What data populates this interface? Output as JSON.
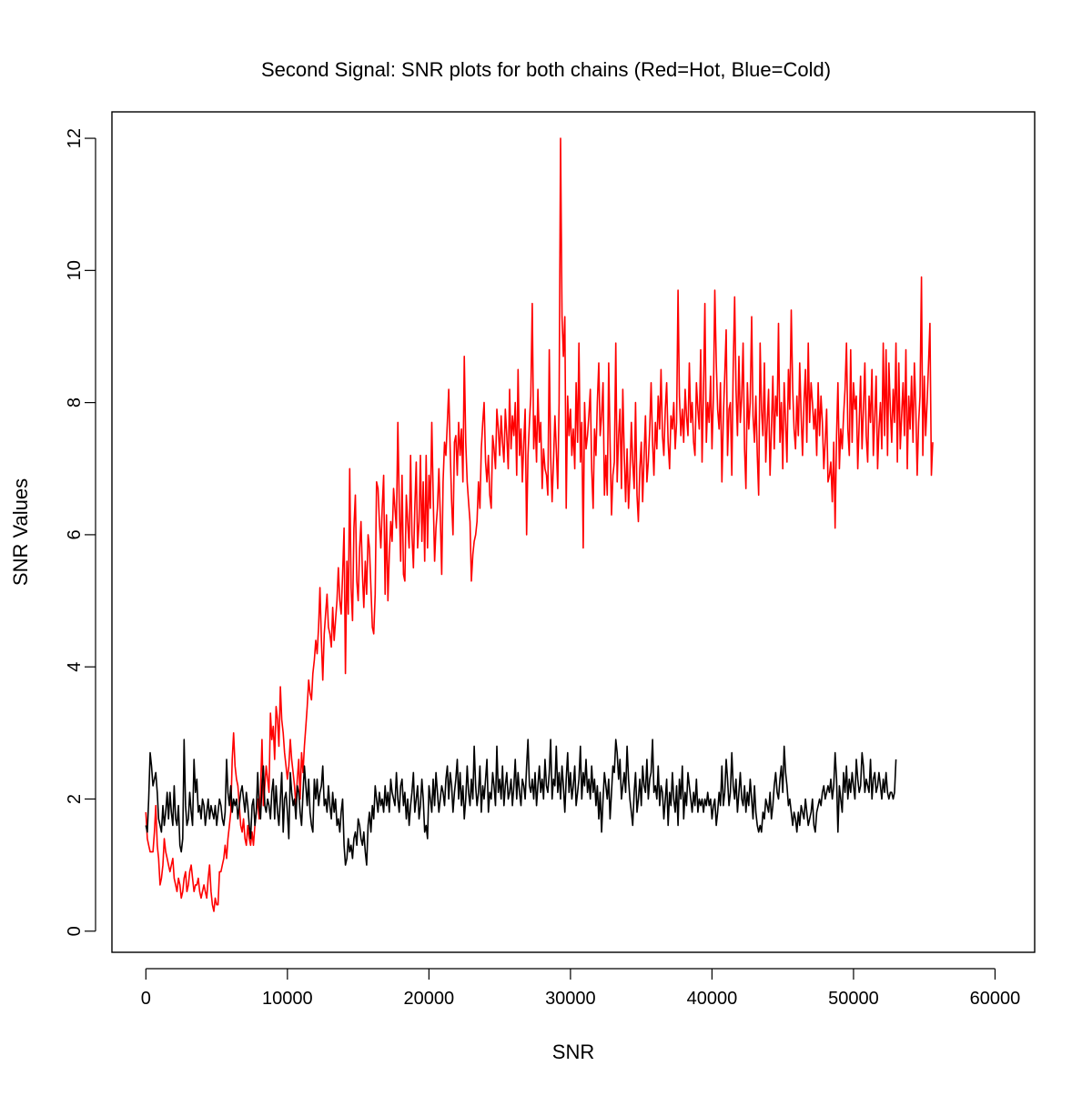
{
  "chart_data": {
    "type": "line",
    "title": "Second Signal: SNR plots for both chains (Red=Hot, Blue=Cold)",
    "xlabel": "SNR",
    "ylabel": "SNR Values",
    "xlim": [
      -2400,
      62800
    ],
    "ylim": [
      -0.32,
      12.4
    ],
    "x_ticks": [
      0,
      10000,
      20000,
      30000,
      40000,
      50000,
      60000
    ],
    "x_tick_labels": [
      "0",
      "10000",
      "20000",
      "30000",
      "40000",
      "50000",
      "60000"
    ],
    "y_ticks": [
      0,
      2,
      4,
      6,
      8,
      10,
      12
    ],
    "y_tick_labels": [
      "0",
      "2",
      "4",
      "6",
      "8",
      "10",
      "12"
    ],
    "grid": false,
    "legend": "none",
    "x_start": 0,
    "x_step": 100,
    "series": [
      {
        "color": "#ff0000",
        "values": [
          1.8,
          1.4,
          1.3,
          1.2,
          1.2,
          1.2,
          1.5,
          1.9,
          1.3,
          1.1,
          0.7,
          0.8,
          1.0,
          1.4,
          1.2,
          1.1,
          1.0,
          0.9,
          1.0,
          1.1,
          0.8,
          0.7,
          0.6,
          0.8,
          0.7,
          0.5,
          0.6,
          0.8,
          0.9,
          0.6,
          0.7,
          0.9,
          1.0,
          0.8,
          0.6,
          0.7,
          0.7,
          0.8,
          0.6,
          0.5,
          0.6,
          0.7,
          0.6,
          0.5,
          0.8,
          1.0,
          0.6,
          0.4,
          0.3,
          0.5,
          0.4,
          0.4,
          0.9,
          0.9,
          1.0,
          1.1,
          1.3,
          1.1,
          1.4,
          1.6,
          1.8,
          2.6,
          3.0,
          2.5,
          2.3,
          2.2,
          1.9,
          1.6,
          1.5,
          1.7,
          1.4,
          1.3,
          1.6,
          1.4,
          1.3,
          1.5,
          1.3,
          1.6,
          1.8,
          2.0,
          1.7,
          2.1,
          2.9,
          1.9,
          2.2,
          2.5,
          2.3,
          2.1,
          3.3,
          2.9,
          3.1,
          2.6,
          3.4,
          3.2,
          2.8,
          3.7,
          3.2,
          3.0,
          2.7,
          2.5,
          2.3,
          2.5,
          2.9,
          2.6,
          2.4,
          2.2,
          1.9,
          2.3,
          2.6,
          2.0,
          2.7,
          2.4,
          2.8,
          3.1,
          3.4,
          3.8,
          3.6,
          3.5,
          3.9,
          4.1,
          4.4,
          4.2,
          4.6,
          5.2,
          4.4,
          3.8,
          4.5,
          4.8,
          5.1,
          4.6,
          4.5,
          4.3,
          4.9,
          4.4,
          4.7,
          5.0,
          5.5,
          5.0,
          4.8,
          5.4,
          6.1,
          3.9,
          5.6,
          4.8,
          7.0,
          5.2,
          4.7,
          6.1,
          6.6,
          5.3,
          5.0,
          5.8,
          6.2,
          5.4,
          4.9,
          5.6,
          5.1,
          6.0,
          5.8,
          5.2,
          4.6,
          4.5,
          5.1,
          6.8,
          6.7,
          6.2,
          5.8,
          6.4,
          6.9,
          5.1,
          6.3,
          5.0,
          5.7,
          6.2,
          5.9,
          6.7,
          6.4,
          6.1,
          7.7,
          6.5,
          5.6,
          6.9,
          5.4,
          5.3,
          6.6,
          6.2,
          5.8,
          7.2,
          6.0,
          5.5,
          6.4,
          7.1,
          5.8,
          6.2,
          7.2,
          5.9,
          6.8,
          5.6,
          7.2,
          5.8,
          6.9,
          6.4,
          7.7,
          6.6,
          5.6,
          6.1,
          6.4,
          7.0,
          6.3,
          5.4,
          6.8,
          7.4,
          7.2,
          7.7,
          8.2,
          7.3,
          6.5,
          6.0,
          7.4,
          7.5,
          6.9,
          7.7,
          7.2,
          7.6,
          6.8,
          8.7,
          7.4,
          6.8,
          6.5,
          6.2,
          5.3,
          5.7,
          5.9,
          6.0,
          6.2,
          6.8,
          6.4,
          7.3,
          7.7,
          8.0,
          7.1,
          6.8,
          7.2,
          6.6,
          6.4,
          7.5,
          7.3,
          7.0,
          7.9,
          7.6,
          7.2,
          7.8,
          7.4,
          7.1,
          7.9,
          7.5,
          7.0,
          8.2,
          7.3,
          7.8,
          7.5,
          8.0,
          6.9,
          8.5,
          7.2,
          7.6,
          6.8,
          7.4,
          7.9,
          6.0,
          7.2,
          7.7,
          8.1,
          9.5,
          7.3,
          7.8,
          7.1,
          8.2,
          7.4,
          7.7,
          6.7,
          7.3,
          7.0,
          6.9,
          6.6,
          8.8,
          7.2,
          6.5,
          7.1,
          7.8,
          7.3,
          6.7,
          8.0,
          12.0,
          9.3,
          8.7,
          9.3,
          6.4,
          8.1,
          7.5,
          7.9,
          7.2,
          7.6,
          7.0,
          8.3,
          7.4,
          8.9,
          7.1,
          7.7,
          5.8,
          8.0,
          7.3,
          7.5,
          7.8,
          8.2,
          7.0,
          6.4,
          7.6,
          7.2,
          8.0,
          8.6,
          7.5,
          7.8,
          8.3,
          6.6,
          7.2,
          6.6,
          8.6,
          7.4,
          6.3,
          6.9,
          7.1,
          8.9,
          6.8,
          7.5,
          7.9,
          6.7,
          8.2,
          7.2,
          6.5,
          7.3,
          6.4,
          6.9,
          7.7,
          7.1,
          6.7,
          8.0,
          6.6,
          6.2,
          7.0,
          7.4,
          6.5,
          7.2,
          7.8,
          6.8,
          7.1,
          7.6,
          8.3,
          7.4,
          6.9,
          7.7,
          7.3,
          8.1,
          7.6,
          8.5,
          7.5,
          7.2,
          7.9,
          8.3,
          7.4,
          7.0,
          7.8,
          7.6,
          8.0,
          7.3,
          7.7,
          9.7,
          8.1,
          7.5,
          7.9,
          7.4,
          8.2,
          7.8,
          7.5,
          8.6,
          7.7,
          8.0,
          7.4,
          7.2,
          8.3,
          7.9,
          7.6,
          8.8,
          7.1,
          8.2,
          9.5,
          7.4,
          8.0,
          7.7,
          8.4,
          7.3,
          8.1,
          9.7,
          8.6,
          7.9,
          7.6,
          8.3,
          6.8,
          7.8,
          8.4,
          9.1,
          7.2,
          7.9,
          8.0,
          6.9,
          8.5,
          9.6,
          8.2,
          7.5,
          8.7,
          7.7,
          8.1,
          8.9,
          7.3,
          6.7,
          8.3,
          7.6,
          8.0,
          9.3,
          7.8,
          7.4,
          8.1,
          7.2,
          6.6,
          8.9,
          7.9,
          7.5,
          8.6,
          7.1,
          7.7,
          8.2,
          6.9,
          7.6,
          8.4,
          7.3,
          8.1,
          7.8,
          9.2,
          7.4,
          8.0,
          7.0,
          8.3,
          7.7,
          7.1,
          8.5,
          7.9,
          9.4,
          8.2,
          7.6,
          7.3,
          8.1,
          7.5,
          8.6,
          7.8,
          7.2,
          8.0,
          8.5,
          7.4,
          8.9,
          7.7,
          8.3,
          8.0,
          7.6,
          7.9,
          7.2,
          8.3,
          7.5,
          8.1,
          7.7,
          7.0,
          7.4,
          7.9,
          6.8,
          6.9,
          7.1,
          6.5,
          7.4,
          6.1,
          7.5,
          8.3,
          7.0,
          7.6,
          7.3,
          7.8,
          8.2,
          8.9,
          7.6,
          7.2,
          8.8,
          7.4,
          8.3,
          7.9,
          8.1,
          7.0,
          7.7,
          8.4,
          7.3,
          7.9,
          8.6,
          7.5,
          7.1,
          8.1,
          7.7,
          8.5,
          7.2,
          7.8,
          8.4,
          7.0,
          7.6,
          8.0,
          7.3,
          8.9,
          7.5,
          8.8,
          7.2,
          8.6,
          7.9,
          7.4,
          8.2,
          7.7,
          8.9,
          7.1,
          8.6,
          7.3,
          7.8,
          8.3,
          7.5,
          8.8,
          7.0,
          8.1,
          7.6,
          8.4,
          7.4,
          8.6,
          7.9,
          6.9,
          7.7,
          8.1,
          9.9,
          7.2,
          8.4,
          7.5,
          8.0,
          8.6,
          9.2,
          6.9,
          7.4
        ]
      },
      {
        "color": "#000000",
        "values": [
          1.6,
          1.5,
          2.0,
          2.7,
          2.5,
          2.2,
          2.3,
          2.4,
          2.1,
          1.7,
          1.6,
          1.5,
          1.9,
          1.6,
          1.8,
          2.1,
          1.7,
          2.1,
          1.8,
          1.6,
          2.2,
          1.7,
          1.6,
          1.9,
          1.3,
          1.2,
          1.4,
          2.9,
          1.9,
          1.6,
          1.7,
          2.1,
          1.8,
          1.6,
          2.6,
          2.1,
          2.3,
          1.8,
          1.9,
          1.7,
          2.0,
          1.9,
          1.6,
          1.8,
          2.0,
          1.7,
          1.9,
          1.8,
          1.7,
          1.9,
          1.6,
          1.8,
          2.0,
          1.9,
          1.7,
          1.6,
          1.8,
          2.6,
          2.1,
          1.9,
          2.2,
          1.8,
          2.0,
          1.9,
          2.0,
          1.7,
          1.9,
          2.1,
          2.2,
          2.0,
          1.8,
          2.1,
          1.9,
          1.6,
          1.4,
          1.9,
          2.0,
          1.6,
          1.8,
          2.4,
          1.9,
          1.7,
          2.2,
          2.5,
          1.9,
          1.8,
          2.0,
          1.9,
          1.7,
          2.1,
          2.3,
          1.7,
          2.2,
          1.8,
          1.6,
          2.0,
          2.4,
          1.5,
          2.0,
          2.1,
          1.8,
          1.4,
          2.4,
          2.1,
          1.9,
          2.0,
          1.7,
          2.2,
          2.1,
          1.8,
          1.6,
          2.1,
          2.5,
          2.2,
          1.9,
          2.3,
          1.8,
          1.6,
          1.5,
          2.3,
          2.0,
          2.3,
          1.9,
          2.1,
          2.2,
          2.5,
          1.9,
          2.0,
          1.8,
          2.2,
          1.9,
          1.7,
          2.1,
          1.8,
          2.0,
          1.6,
          1.7,
          1.5,
          1.8,
          2.0,
          1.3,
          1.0,
          1.1,
          1.4,
          1.2,
          1.3,
          1.1,
          1.4,
          1.5,
          1.3,
          1.7,
          1.6,
          1.4,
          1.3,
          1.5,
          1.2,
          1.0,
          1.6,
          1.8,
          1.5,
          1.9,
          1.7,
          2.2,
          2.0,
          1.8,
          2.1,
          1.9,
          2.0,
          1.8,
          2.2,
          1.9,
          2.1,
          1.8,
          2.3,
          2.1,
          2.0,
          1.9,
          2.4,
          2.0,
          1.8,
          2.2,
          2.3,
          1.9,
          2.1,
          1.7,
          2.0,
          1.6,
          1.9,
          2.1,
          2.4,
          1.8,
          2.0,
          2.2,
          1.7,
          1.9,
          2.3,
          2.0,
          1.5,
          1.6,
          1.4,
          2.2,
          2.0,
          1.8,
          2.3,
          1.9,
          2.4,
          2.1,
          1.8,
          2.0,
          2.2,
          2.1,
          1.9,
          2.3,
          2.5,
          2.0,
          2.4,
          2.2,
          1.8,
          2.1,
          2.3,
          2.6,
          2.0,
          2.4,
          1.9,
          2.2,
          1.7,
          2.0,
          2.5,
          2.1,
          1.9,
          2.3,
          2.0,
          2.8,
          2.2,
          1.9,
          2.1,
          2.5,
          1.8,
          2.2,
          2.0,
          2.3,
          2.6,
          1.8,
          2.1,
          2.0,
          2.4,
          2.2,
          1.9,
          2.8,
          2.1,
          2.3,
          2.0,
          2.5,
          1.9,
          2.2,
          2.4,
          2.0,
          2.1,
          2.3,
          1.9,
          2.2,
          2.6,
          2.0,
          2.4,
          2.1,
          1.9,
          2.3,
          2.2,
          2.0,
          2.5,
          2.9,
          2.2,
          2.1,
          2.3,
          2.0,
          2.4,
          1.9,
          2.2,
          2.5,
          2.1,
          2.3,
          2.0,
          2.6,
          2.2,
          2.1,
          2.4,
          2.9,
          2.0,
          2.3,
          2.2,
          2.8,
          2.1,
          2.4,
          2.0,
          2.5,
          2.2,
          1.8,
          2.3,
          2.7,
          2.1,
          2.4,
          2.0,
          2.2,
          2.5,
          1.9,
          2.1,
          2.3,
          2.8,
          2.0,
          2.4,
          2.2,
          2.6,
          2.1,
          2.3,
          2.0,
          2.5,
          2.1,
          2.3,
          1.9,
          2.2,
          1.7,
          2.1,
          1.5,
          2.0,
          2.4,
          2.2,
          2.0,
          2.3,
          1.7,
          2.1,
          2.5,
          2.4,
          2.9,
          2.7,
          2.3,
          2.6,
          2.0,
          2.2,
          2.4,
          2.1,
          2.8,
          2.3,
          2.0,
          1.8,
          1.6,
          2.1,
          2.4,
          1.8,
          2.0,
          2.3,
          1.9,
          2.5,
          2.2,
          2.1,
          2.6,
          2.0,
          2.3,
          2.4,
          2.9,
          2.1,
          2.2,
          2.0,
          2.5,
          1.9,
          2.2,
          2.1,
          1.7,
          2.0,
          2.3,
          1.6,
          2.1,
          1.9,
          2.4,
          2.0,
          1.8,
          2.2,
          1.6,
          2.3,
          2.0,
          2.5,
          1.7,
          2.1,
          1.9,
          2.4,
          2.2,
          2.0,
          1.8,
          2.1,
          1.9,
          2.3,
          1.8,
          2.0,
          1.9,
          2.0,
          1.8,
          2.0,
          1.9,
          2.1,
          1.9,
          2.0,
          1.7,
          1.9,
          2.0,
          1.6,
          1.8,
          2.1,
          1.9,
          2.5,
          1.9,
          2.1,
          2.6,
          2.3,
          1.9,
          2.1,
          2.7,
          2.2,
          2.0,
          2.3,
          1.8,
          2.1,
          2.4,
          2.0,
          1.9,
          2.2,
          1.8,
          2.1,
          1.9,
          2.3,
          2.0,
          1.7,
          2.2,
          1.8,
          1.6,
          1.5,
          1.6,
          1.5,
          1.8,
          1.7,
          2.0,
          1.9,
          1.8,
          2.1,
          1.7,
          1.9,
          2.2,
          2.4,
          2.1,
          2.0,
          2.3,
          2.5,
          2.1,
          2.8,
          2.4,
          2.2,
          1.9,
          2.0,
          1.8,
          1.6,
          1.8,
          1.7,
          1.5,
          1.8,
          1.6,
          1.9,
          1.8,
          1.7,
          2.0,
          1.8,
          1.6,
          1.7,
          1.8,
          2.0,
          1.6,
          1.5,
          1.8,
          1.9,
          2.0,
          1.9,
          2.1,
          2.2,
          2.0,
          2.1,
          2.2,
          2.1,
          2.3,
          2.0,
          2.2,
          2.7,
          2.3,
          1.5,
          2.2,
          2.0,
          1.8,
          2.4,
          2.1,
          2.5,
          2.0,
          2.3,
          2.1,
          2.4,
          2.2,
          2.0,
          2.6,
          2.3,
          2.1,
          2.2,
          2.7,
          2.5,
          2.1,
          2.3,
          2.2,
          2.1,
          2.6,
          2.0,
          2.3,
          2.4,
          2.1,
          2.2,
          2.4,
          2.2,
          2.0,
          2.3,
          2.1,
          2.4,
          2.1,
          2.0,
          2.1,
          2.1,
          2.0,
          2.1,
          2.6
        ]
      }
    ]
  }
}
